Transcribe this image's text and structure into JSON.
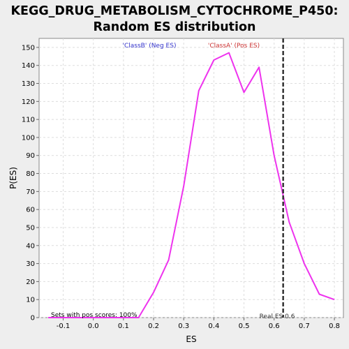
{
  "chart_data": {
    "type": "line",
    "title_line1": "KEGG_DRUG_METABOLISM_CYTOCHROME_P450:",
    "title_line2": "Random ES distribution",
    "xlabel": "ES",
    "ylabel": "P(ES)",
    "xlim": [
      -0.18,
      0.83
    ],
    "ylim": [
      0,
      155
    ],
    "x_ticks": [
      -0.1,
      0.0,
      0.1,
      0.2,
      0.3,
      0.4,
      0.5,
      0.6,
      0.7,
      0.8
    ],
    "y_ticks": [
      0,
      10,
      20,
      30,
      40,
      50,
      60,
      70,
      80,
      90,
      100,
      110,
      120,
      130,
      140,
      150
    ],
    "grid": true,
    "series": [
      {
        "color": "#ee33ee",
        "x": [
          -0.15,
          -0.1,
          -0.05,
          0.0,
          0.05,
          0.1,
          0.15,
          0.2,
          0.25,
          0.3,
          0.35,
          0.4,
          0.45,
          0.5,
          0.55,
          0.6,
          0.65,
          0.7,
          0.75,
          0.8
        ],
        "y": [
          0,
          0,
          0,
          0,
          0,
          0,
          0,
          14,
          32,
          73,
          126,
          143,
          147,
          125,
          139,
          90,
          53,
          30,
          13,
          10
        ]
      }
    ],
    "real_es": {
      "x": 0.63,
      "label": "Real ES 0.6",
      "color": "#333333"
    },
    "annotations": {
      "class_b": {
        "text": "'ClassB' (Neg ES)",
        "color": "#3333cc"
      },
      "class_a": {
        "text": "'ClassA' (Pos ES)",
        "color": "#cc3333"
      },
      "sets_pos": {
        "text": "Sets with pos scores: 100%",
        "color": "#000000"
      }
    }
  }
}
